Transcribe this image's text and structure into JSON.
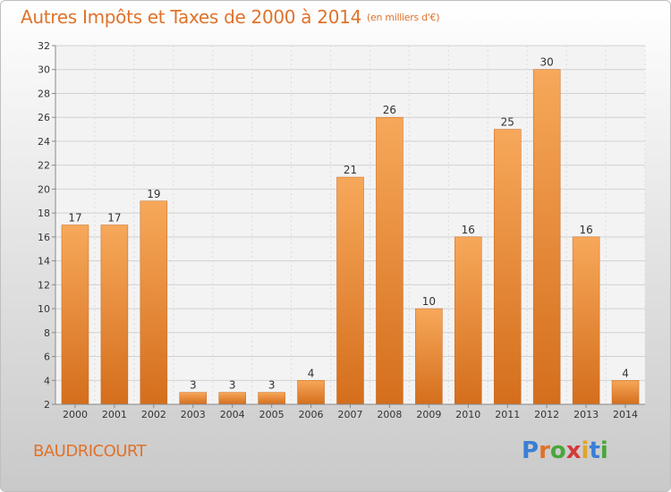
{
  "header": {
    "title": "Autres Impôts et Taxes de 2000 à 2014",
    "unit": "(en milliers d'€)"
  },
  "footer": {
    "place": "BAUDRICOURT",
    "logo": "Proxiti"
  },
  "colors": {
    "accent": "#e0722a",
    "bar_top": "#f7a85a",
    "bar_bottom": "#d46e1c"
  },
  "chart_data": {
    "type": "bar",
    "categories": [
      "2000",
      "2001",
      "2002",
      "2003",
      "2004",
      "2005",
      "2006",
      "2007",
      "2008",
      "2009",
      "2010",
      "2011",
      "2012",
      "2013",
      "2014"
    ],
    "values": [
      17,
      17,
      19,
      3,
      3,
      3,
      4,
      21,
      26,
      10,
      16,
      25,
      30,
      16,
      4
    ],
    "ylim": [
      2,
      32
    ],
    "yticks": [
      2,
      4,
      6,
      8,
      10,
      12,
      14,
      16,
      18,
      20,
      22,
      24,
      26,
      28,
      30,
      32
    ],
    "grid": true
  }
}
